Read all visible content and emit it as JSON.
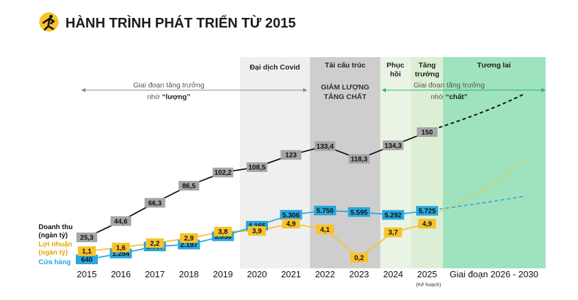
{
  "title": "HÀNH TRÌNH PHÁT TRIỂN TỪ 2015",
  "colors": {
    "revenue": "#111111",
    "profit": "#F7C22B",
    "stores": "#2AA7DC",
    "covid_band": "#EFEFEF",
    "restructure_band": "#CFCECF",
    "recovery_band": "#E9F4E4",
    "growth_band": "#DCEFD5",
    "future_band": "#9EE2BE",
    "revenue_label_bg": "#A6A6A6",
    "arrow_green": "#2FB36A"
  },
  "phases": {
    "covid": "Đại dịch Covid",
    "restructure": "Tái cấu trúc",
    "recovery_line1": "Phục",
    "recovery_line2": "hồi",
    "growth_line1": "Tăng",
    "growth_line2": "trưởng",
    "future": "Tương lai"
  },
  "annotations": {
    "quantity_line1": "Giai đoạn tăng trưởng",
    "quantity_line2_pre": "nhờ ",
    "quantity_line2_bold": "“lượng”",
    "restructure_line1": "GIẢM LƯỢNG",
    "restructure_line2": "TĂNG CHẤT",
    "quality_line1": "Giai đoạn tăng trưởng",
    "quality_line2_pre": "nhờ ",
    "quality_line2_bold": "“chất”"
  },
  "legend": {
    "revenue_line1": "Doanh thu",
    "revenue_line2": "(ngàn tỷ)",
    "profit_line1": "Lợi nhuận",
    "profit_line2": "(ngàn tỷ)",
    "stores": "Cửa hàng"
  },
  "x_axis": {
    "plan_note": "(Kế hoạch)",
    "future_label": "Giai đoạn 2026 - 2030"
  },
  "chart_data": {
    "type": "line",
    "x": [
      "2015",
      "2016",
      "2017",
      "2018",
      "2019",
      "2020",
      "2021",
      "2022",
      "2023",
      "2024",
      "2025"
    ],
    "series": [
      {
        "key": "revenue",
        "values": [
          25.3,
          44.6,
          66.3,
          86.5,
          102.2,
          108.5,
          123,
          133.4,
          118.3,
          134.3,
          150
        ],
        "labels": [
          "25,3",
          "44,6",
          "66,3",
          "86,5",
          "102,2",
          "108,5",
          "123",
          "133,4",
          "118,3",
          "134,3",
          "150"
        ]
      },
      {
        "key": "profit",
        "values": [
          1.1,
          1.6,
          2.2,
          2.9,
          3.8,
          3.9,
          4.9,
          4.1,
          0.2,
          3.7,
          4.9
        ],
        "labels": [
          "1,1",
          "1,6",
          "2,2",
          "2,9",
          "3,8",
          "3,9",
          "4,9",
          "4,1",
          "0,2",
          "3,7",
          "4,9"
        ]
      },
      {
        "key": "stores",
        "values": [
          640,
          1254,
          1997,
          2197,
          3058,
          4165,
          5306,
          5750,
          5595,
          5292,
          5725
        ],
        "labels": [
          "640",
          "1.254",
          "1.997",
          "2.197",
          "3.058",
          "4.165",
          "5.306",
          "5.750",
          "5.595",
          "5.292",
          "5.725"
        ]
      }
    ],
    "planned_years": [
      "2025"
    ],
    "projection_years": [
      "2026",
      "2027",
      "2028",
      "2029",
      "2030"
    ]
  }
}
